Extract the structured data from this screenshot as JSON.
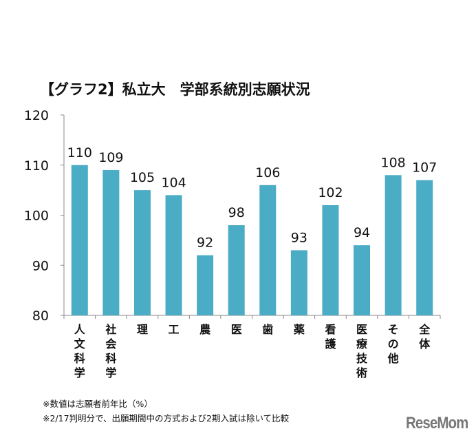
{
  "chart_data": {
    "type": "bar",
    "title": "【グラフ2】私立大　学部系統別志願状況",
    "categories": [
      "人文科学",
      "社会科学",
      "理",
      "工",
      "農",
      "医",
      "歯",
      "薬",
      "看護",
      "医療技術",
      "その他",
      "全体"
    ],
    "values": [
      110,
      109,
      105,
      104,
      92,
      98,
      106,
      93,
      102,
      94,
      108,
      107
    ],
    "ylim": [
      80,
      120
    ],
    "yticks": [
      80,
      90,
      100,
      110,
      120
    ],
    "grid": false,
    "bar_color": "#4BACC6",
    "data_labels": true
  },
  "notes": [
    "※数値は志願者前年比（%）",
    "※2/17判明分で、出願期間中の方式および2期入試は除いて比較"
  ],
  "logo": "ReseMom"
}
